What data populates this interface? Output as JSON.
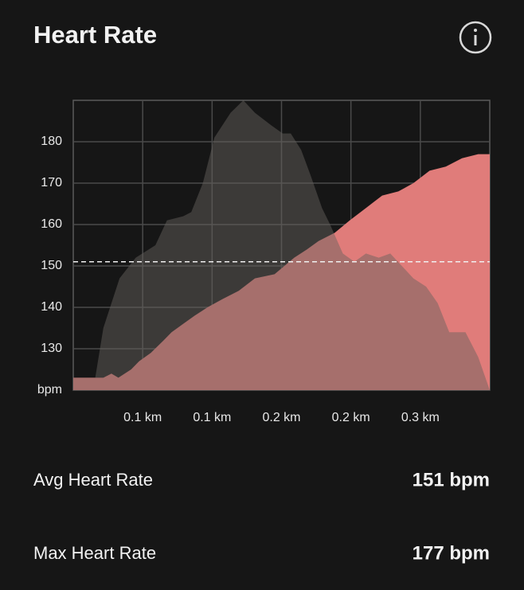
{
  "header": {
    "title": "Heart Rate"
  },
  "chart_data": {
    "type": "area",
    "series": [
      {
        "color": "#e07c7a",
        "opacity": 1,
        "x": [
          0,
          0.026,
          0.033,
          0.039,
          0.05,
          0.057,
          0.067,
          0.078,
          0.085,
          0.095,
          0.105,
          0.116,
          0.129,
          0.143,
          0.157,
          0.174,
          0.191,
          0.202,
          0.212,
          0.226,
          0.239,
          0.253,
          0.267,
          0.281,
          0.294,
          0.308,
          0.322,
          0.336,
          0.35,
          0.36
        ],
        "values": [
          123,
          123,
          124,
          123,
          125,
          127,
          129,
          132,
          134,
          136,
          138,
          140,
          142,
          144,
          147,
          148,
          152,
          154,
          156,
          158,
          161,
          164,
          167,
          168,
          170,
          173,
          174,
          176,
          177,
          177
        ]
      },
      {
        "color": "#67625f",
        "opacity": 0.48,
        "x": [
          0,
          0.019,
          0.026,
          0.04,
          0.054,
          0.071,
          0.081,
          0.095,
          0.102,
          0.112,
          0.122,
          0.136,
          0.147,
          0.157,
          0.171,
          0.181,
          0.188,
          0.197,
          0.205,
          0.215,
          0.222,
          0.233,
          0.243,
          0.253,
          0.264,
          0.274,
          0.284,
          0.294,
          0.305,
          0.315,
          0.325,
          0.339,
          0.35,
          0.36
        ],
        "values": [
          123,
          123,
          135,
          147,
          152,
          155,
          161,
          162,
          163,
          170,
          181,
          187,
          190,
          187,
          184,
          182,
          182,
          178,
          172,
          164,
          160,
          153,
          151,
          153,
          152,
          153,
          150,
          147,
          145,
          141,
          134,
          134,
          128,
          120
        ]
      }
    ],
    "reference_line": 151,
    "xlim": [
      0,
      0.36
    ],
    "xticks": [
      {
        "value": 0.06,
        "label": "0.1 km"
      },
      {
        "value": 0.12,
        "label": "0.1 km"
      },
      {
        "value": 0.18,
        "label": "0.2 km"
      },
      {
        "value": 0.24,
        "label": "0.2 km"
      },
      {
        "value": 0.3,
        "label": "0.3 km"
      }
    ],
    "ylim": [
      120,
      190
    ],
    "yticks": [
      {
        "value": 120,
        "label": "bpm"
      },
      130,
      140,
      150,
      160,
      170,
      180
    ],
    "grid": true
  },
  "stats": [
    {
      "label": "Avg Heart Rate",
      "value": "151 bpm"
    },
    {
      "label": "Max Heart Rate",
      "value": "177 bpm"
    }
  ]
}
